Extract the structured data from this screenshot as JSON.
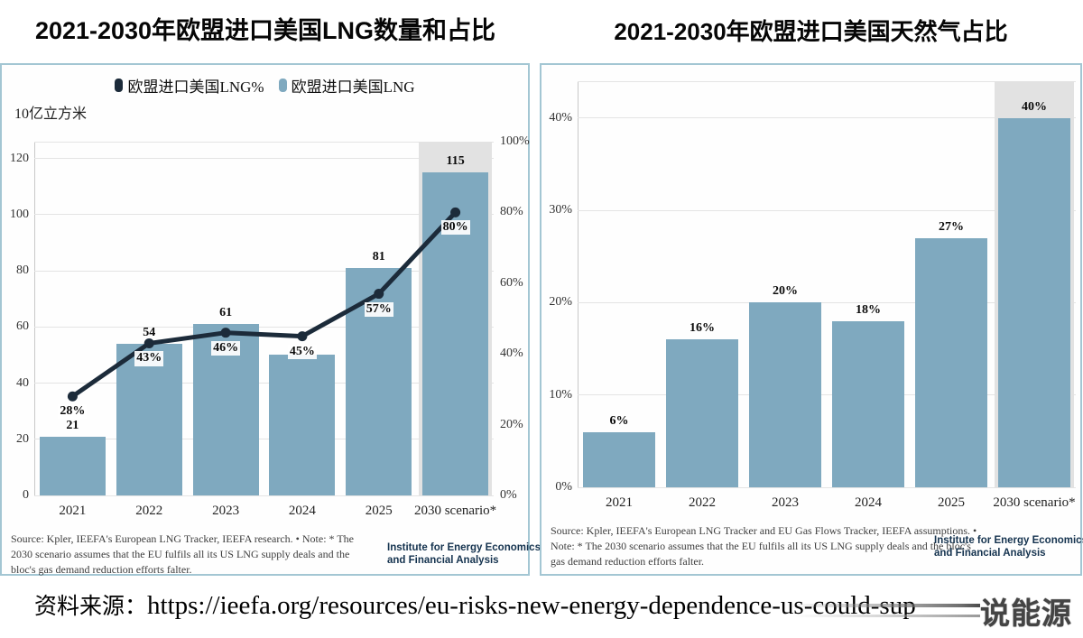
{
  "page": {
    "left_title": "2021-2030年欧盟进口美国LNG数量和占比",
    "right_title": "2021-2030年欧盟进口美国天然气占比",
    "footer_prefix": "资料来源：",
    "footer_url": "https://ieefa.org/resources/eu-risks-new-energy-dependence-us-could-sup",
    "watermark": "说能源"
  },
  "colors": {
    "bar": "#7fa9bf",
    "line": "#1c2b3a",
    "highlight_band": "#e2e2e2",
    "panel_border": "#a3c6d3",
    "grid": "#e4e4e4"
  },
  "logo": {
    "line1": "Institute for Energy Economics",
    "line2": "and Financial Analysis"
  },
  "chart_data": [
    {
      "type": "bar+line",
      "title": "2021-2030年欧盟进口美国LNG数量和占比",
      "unit_label": "10亿立方米",
      "legend": [
        {
          "label": "欧盟进口美国LNG%",
          "color": "#1c2b3a"
        },
        {
          "label": "欧盟进口美国LNG",
          "color": "#7fa9bf"
        }
      ],
      "categories": [
        "2021",
        "2022",
        "2023",
        "2024",
        "2025",
        "2030 scenario*"
      ],
      "series": [
        {
          "name": "欧盟进口美国LNG",
          "kind": "bar",
          "values": [
            21,
            54,
            61,
            50,
            81,
            115
          ],
          "labels": [
            "21",
            "54",
            "61",
            "",
            "81",
            "115"
          ]
        },
        {
          "name": "欧盟进口美国LNG%",
          "kind": "line",
          "values": [
            28,
            43,
            46,
            45,
            57,
            80
          ],
          "labels": [
            "28%",
            "43%",
            "46%",
            "45%",
            "57%",
            "80%"
          ]
        }
      ],
      "y_left": {
        "ticks": [
          0,
          20,
          40,
          60,
          80,
          100,
          120
        ],
        "max": 126
      },
      "y_right": {
        "ticks": [
          "0%",
          "20%",
          "40%",
          "60%",
          "80%",
          "100%"
        ],
        "tick_values": [
          0,
          20,
          40,
          60,
          80,
          100
        ],
        "max": 100
      },
      "highlight_index": 5,
      "grid": true,
      "legend_position": "top",
      "source": "Source: Kpler, IEEFA's European LNG Tracker, IEEFA research. • Note: * The 2030 scenario assumes that the EU fulfils all its US LNG supply deals and the bloc's gas demand reduction efforts falter."
    },
    {
      "type": "bar",
      "title": "2021-2030年欧盟进口美国天然气占比",
      "categories": [
        "2021",
        "2022",
        "2023",
        "2024",
        "2025",
        "2030 scenario*"
      ],
      "series": [
        {
          "name": "欧盟进口美国天然气占比",
          "kind": "bar",
          "values": [
            6,
            16,
            20,
            18,
            27,
            40
          ],
          "labels": [
            "6%",
            "16%",
            "20%",
            "18%",
            "27%",
            "40%"
          ]
        }
      ],
      "y_left": {
        "ticks": [
          "0%",
          "10%",
          "20%",
          "30%",
          "40%"
        ],
        "tick_values": [
          0,
          10,
          20,
          30,
          40
        ],
        "max": 44
      },
      "highlight_index": 5,
      "grid": true,
      "source": "Source: Kpler, IEEFA's European LNG Tracker and EU Gas Flows Tracker, IEEFA assumptions. • Note: * The 2030 scenario assumes that the EU fulfils all its US LNG supply deals and the bloc's gas demand reduction efforts falter."
    }
  ]
}
